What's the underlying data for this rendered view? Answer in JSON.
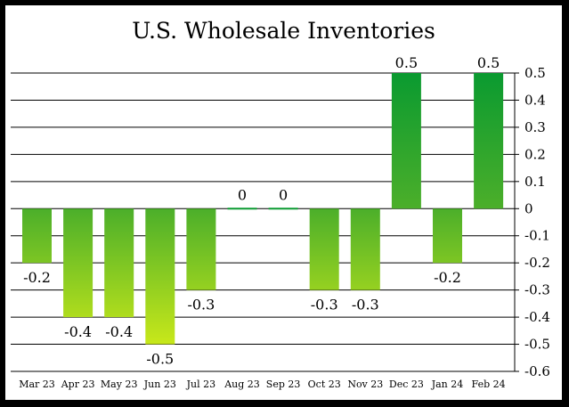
{
  "chart_data": {
    "type": "bar",
    "title": "U.S. Wholesale Inventories",
    "categories": [
      "Mar 23",
      "Apr 23",
      "May 23",
      "Jun 23",
      "Jul 23",
      "Aug 23",
      "Sep 23",
      "Oct 23",
      "Nov 23",
      "Dec 23",
      "Jan 24",
      "Feb 24"
    ],
    "values": [
      -0.2,
      -0.4,
      -0.4,
      -0.5,
      -0.3,
      0,
      0,
      -0.3,
      -0.3,
      0.5,
      -0.2,
      0.5
    ],
    "data_labels": [
      "-0.2",
      "-0.4",
      "-0.4",
      "-0.5",
      "-0.3",
      "0",
      "0",
      "-0.3",
      "-0.3",
      "0.5",
      "-0.2",
      "0.5"
    ],
    "y_ticks": [
      0.5,
      0.4,
      0.3,
      0.2,
      0.1,
      0,
      -0.1,
      -0.2,
      -0.3,
      -0.4,
      -0.5,
      -0.6
    ],
    "y_tick_labels": [
      "0.5",
      "0.4",
      "0.3",
      "0.2",
      "0.1",
      "0",
      "-0.1",
      "-0.2",
      "-0.3",
      "-0.4",
      "-0.5",
      "-0.6"
    ],
    "ylim": [
      -0.6,
      0.5
    ],
    "y_axis_position": "right",
    "grid": true,
    "colors": {
      "bar_dark": "#0a9a30",
      "bar_light": "#c8e81a",
      "grid": "#000000"
    }
  }
}
